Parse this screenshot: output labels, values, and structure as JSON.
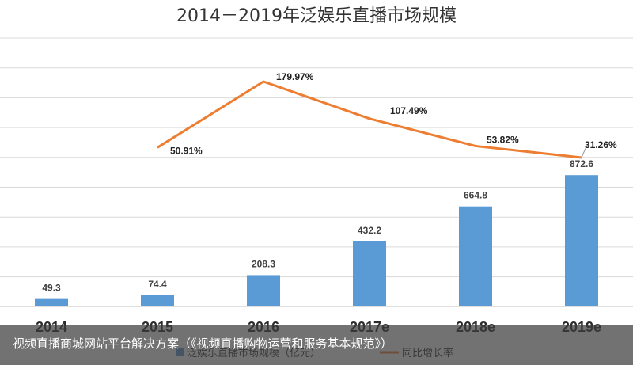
{
  "chart_data": {
    "type": "bar",
    "title": "2014－2019年泛娱乐直播市场规模",
    "categories": [
      "2014",
      "2015",
      "2016",
      "2017e",
      "2018e",
      "2019e"
    ],
    "series": [
      {
        "name": "泛娱乐直播市场规模（亿元）",
        "type": "bar",
        "values": [
          49.3,
          74.4,
          208.3,
          432.2,
          664.8,
          872.6
        ],
        "labels": [
          "49.3",
          "74.4",
          "208.3",
          "432.2",
          "664.8",
          "872.6"
        ],
        "color": "#5b9bd5"
      },
      {
        "name": "同比增长率",
        "type": "line",
        "values": [
          null,
          50.91,
          179.97,
          107.49,
          53.82,
          31.26
        ],
        "labels": [
          "",
          "50.91%",
          "179.97%",
          "107.49%",
          "53.82%",
          "31.26%"
        ],
        "color": "#ed7d31"
      }
    ],
    "grid": true,
    "legend_position": "bottom"
  },
  "caption": {
    "text": "视频直播商城网站平台解决方案（《视频直播购物运营和服务基本规范》）"
  }
}
